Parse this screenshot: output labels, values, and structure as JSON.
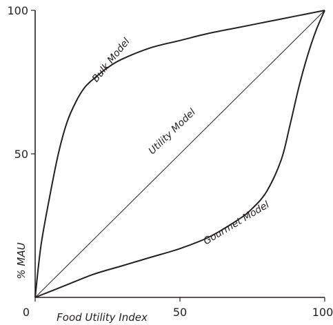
{
  "chart_data": {
    "type": "line",
    "title": "",
    "xlabel": "Food Utility Index",
    "ylabel": "% MAU",
    "xlim": [
      0,
      100
    ],
    "ylim": [
      0,
      100
    ],
    "x_ticks": [
      "0",
      "50",
      "100"
    ],
    "y_ticks": [
      "50",
      "100"
    ],
    "grid": false,
    "legend": "none",
    "series": [
      {
        "name": "Bulk Model",
        "x": [
          0,
          2,
          5,
          8,
          11,
          14,
          17,
          20,
          25,
          30,
          40,
          50,
          60,
          70,
          80,
          90,
          100
        ],
        "y": [
          0,
          18,
          35,
          50,
          61,
          68,
          73,
          76,
          80,
          83,
          87,
          89.5,
          92,
          94,
          96,
          98,
          100
        ]
      },
      {
        "name": "Utility Model",
        "x": [
          0,
          100
        ],
        "y": [
          0,
          100
        ]
      },
      {
        "name": "Gourmet Model",
        "x": [
          0,
          10,
          20,
          30,
          40,
          50,
          60,
          70,
          75,
          80,
          85,
          88,
          91,
          94,
          97,
          100
        ],
        "y": [
          0,
          4,
          8,
          11,
          14,
          17,
          21,
          27,
          31,
          37,
          48,
          60,
          73,
          84,
          93,
          100
        ]
      }
    ]
  }
}
